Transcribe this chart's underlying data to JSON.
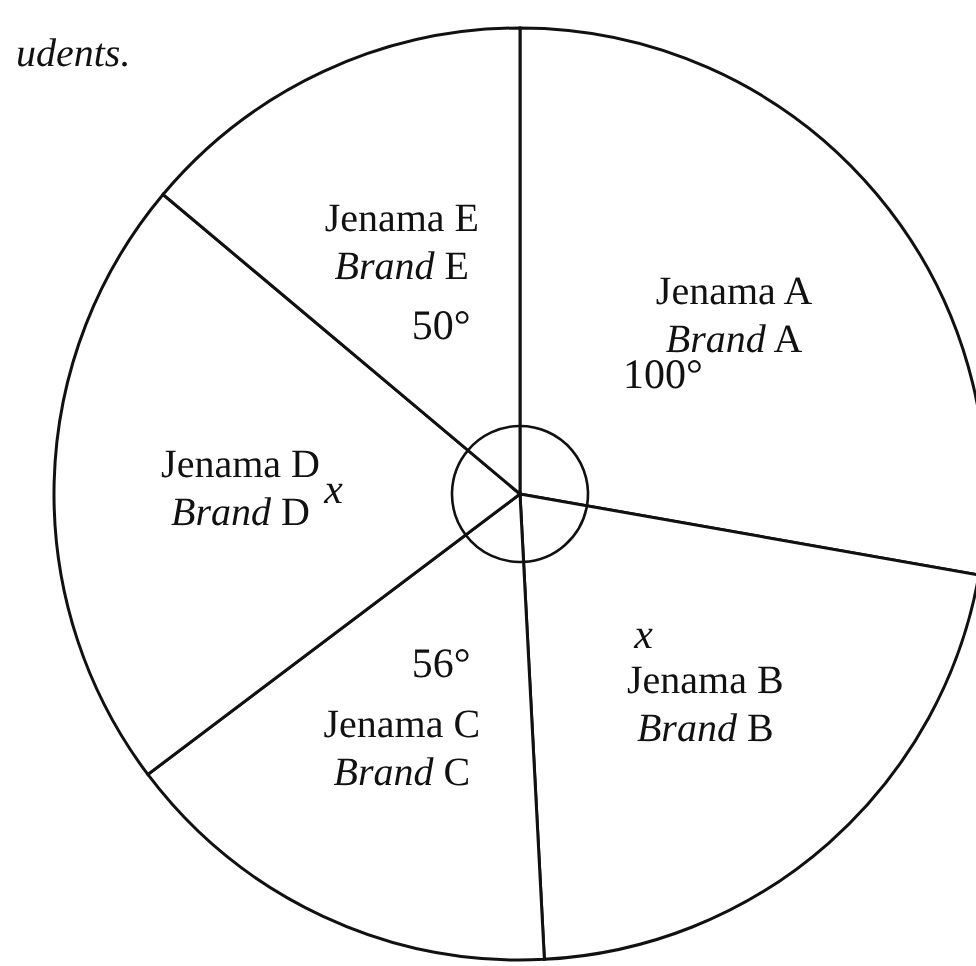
{
  "chart_data": {
    "type": "pie",
    "categories": [
      "Jenama A\nBrand A",
      "Jenama B\nBrand B",
      "Jenama C\nBrand C",
      "Jenama D\nBrand D",
      "Jenama E\nBrand E"
    ],
    "values": [
      100,
      77,
      56,
      77,
      50
    ],
    "colors": [
      "#ffffff",
      "#ffffff",
      "#ffffff",
      "#ffffff",
      "#ffffff"
    ],
    "value_labels": [
      "100°",
      "x",
      "56°",
      "x",
      "50°"
    ],
    "annotations": [
      "udents."
    ]
  }
}
